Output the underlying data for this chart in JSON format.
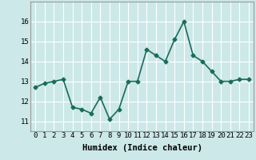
{
  "xlabel": "Humidex (Indice chaleur)",
  "x_values": [
    0,
    1,
    2,
    3,
    4,
    5,
    6,
    7,
    8,
    9,
    10,
    11,
    12,
    13,
    14,
    15,
    16,
    17,
    18,
    19,
    20,
    21,
    22,
    23
  ],
  "y_values": [
    12.7,
    12.9,
    13.0,
    13.1,
    11.7,
    11.6,
    11.4,
    12.2,
    11.1,
    11.6,
    13.0,
    13.0,
    14.6,
    14.3,
    14.0,
    15.1,
    16.0,
    14.3,
    14.0,
    13.5,
    13.0,
    13.0,
    13.1,
    13.1
  ],
  "line_color": "#1a6b5a",
  "marker": "D",
  "marker_size": 2.5,
  "bg_color": "#cce8e8",
  "grid_color": "#ffffff",
  "ylim": [
    10.5,
    17.0
  ],
  "yticks": [
    11,
    12,
    13,
    14,
    15,
    16
  ],
  "xlim": [
    -0.5,
    23.5
  ],
  "xticks": [
    0,
    1,
    2,
    3,
    4,
    5,
    6,
    7,
    8,
    9,
    10,
    11,
    12,
    13,
    14,
    15,
    16,
    17,
    18,
    19,
    20,
    21,
    22,
    23
  ],
  "tick_fontsize": 6.5,
  "label_fontsize": 7.5,
  "line_width": 1.2
}
